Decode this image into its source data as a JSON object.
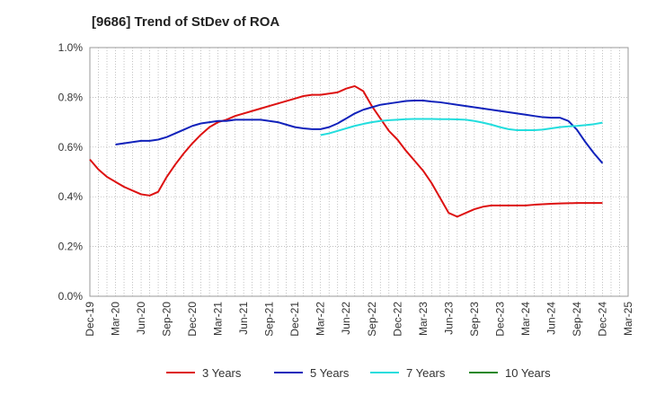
{
  "chart_data": {
    "type": "line",
    "title": "[9686]  Trend of StDev of ROA",
    "xlabel": "",
    "ylabel": "",
    "ylim": [
      0,
      1.0
    ],
    "y_ticks": [
      "0.0%",
      "0.2%",
      "0.4%",
      "0.6%",
      "0.8%",
      "1.0%"
    ],
    "y_tick_values": [
      0,
      0.2,
      0.4,
      0.6,
      0.8,
      1.0
    ],
    "x_ticks": [
      "Dec-19",
      "Mar-20",
      "Jun-20",
      "Sep-20",
      "Dec-20",
      "Mar-21",
      "Jun-21",
      "Sep-21",
      "Dec-21",
      "Mar-22",
      "Jun-22",
      "Sep-22",
      "Dec-22",
      "Mar-23",
      "Jun-23",
      "Sep-23",
      "Dec-23",
      "Mar-24",
      "Jun-24",
      "Sep-24",
      "Dec-24",
      "Mar-25"
    ],
    "grid": true,
    "legend_position": "bottom",
    "series": [
      {
        "name": "3 Years",
        "color": "#dd1111",
        "x": [
          "Dec-19",
          "Jan-20",
          "Feb-20",
          "Mar-20",
          "Apr-20",
          "May-20",
          "Jun-20",
          "Jul-20",
          "Aug-20",
          "Sep-20",
          "Oct-20",
          "Nov-20",
          "Dec-20",
          "Jan-21",
          "Feb-21",
          "Mar-21",
          "Apr-21",
          "May-21",
          "Jun-21",
          "Jul-21",
          "Aug-21",
          "Sep-21",
          "Oct-21",
          "Nov-21",
          "Dec-21",
          "Jan-22",
          "Feb-22",
          "Mar-22",
          "Apr-22",
          "May-22",
          "Jun-22",
          "Jul-22",
          "Aug-22",
          "Sep-22",
          "Oct-22",
          "Nov-22",
          "Dec-22",
          "Jan-23",
          "Feb-23",
          "Mar-23",
          "Apr-23",
          "May-23",
          "Jun-23",
          "Jul-23",
          "Aug-23",
          "Sep-23",
          "Oct-23",
          "Nov-23",
          "Dec-23",
          "Jan-24",
          "Feb-24",
          "Mar-24",
          "Apr-24",
          "May-24",
          "Jun-24",
          "Jul-24",
          "Aug-24",
          "Sep-24",
          "Oct-24",
          "Nov-24",
          "Dec-24"
        ],
        "values": [
          0.55,
          0.51,
          0.48,
          0.46,
          0.44,
          0.425,
          0.41,
          0.405,
          0.42,
          0.48,
          0.53,
          0.575,
          0.615,
          0.65,
          0.68,
          0.7,
          0.71,
          0.725,
          0.735,
          0.745,
          0.755,
          0.765,
          0.775,
          0.785,
          0.795,
          0.805,
          0.81,
          0.81,
          0.815,
          0.82,
          0.835,
          0.845,
          0.825,
          0.765,
          0.715,
          0.665,
          0.63,
          0.585,
          0.545,
          0.505,
          0.455,
          0.395,
          0.335,
          0.32,
          0.335,
          0.35,
          0.36,
          0.365,
          0.365,
          0.365,
          0.365,
          0.365,
          0.368,
          0.37,
          0.372,
          0.373,
          0.374,
          0.375,
          0.375,
          0.375,
          0.375
        ]
      },
      {
        "name": "5 Years",
        "color": "#1122bb",
        "x": [
          "Mar-20",
          "Apr-20",
          "May-20",
          "Jun-20",
          "Jul-20",
          "Aug-20",
          "Sep-20",
          "Oct-20",
          "Nov-20",
          "Dec-20",
          "Jan-21",
          "Feb-21",
          "Mar-21",
          "Apr-21",
          "May-21",
          "Jun-21",
          "Jul-21",
          "Aug-21",
          "Sep-21",
          "Oct-21",
          "Nov-21",
          "Dec-21",
          "Jan-22",
          "Feb-22",
          "Mar-22",
          "Apr-22",
          "May-22",
          "Jun-22",
          "Jul-22",
          "Aug-22",
          "Sep-22",
          "Oct-22",
          "Nov-22",
          "Dec-22",
          "Jan-23",
          "Feb-23",
          "Mar-23",
          "Apr-23",
          "May-23",
          "Jun-23",
          "Jul-23",
          "Aug-23",
          "Sep-23",
          "Oct-23",
          "Nov-23",
          "Dec-23",
          "Jan-24",
          "Feb-24",
          "Mar-24",
          "Apr-24",
          "May-24",
          "Jun-24",
          "Jul-24",
          "Aug-24",
          "Sep-24",
          "Oct-24",
          "Nov-24",
          "Dec-24"
        ],
        "values": [
          0.61,
          0.615,
          0.62,
          0.625,
          0.625,
          0.63,
          0.64,
          0.655,
          0.67,
          0.685,
          0.695,
          0.7,
          0.705,
          0.705,
          0.71,
          0.71,
          0.71,
          0.71,
          0.705,
          0.7,
          0.69,
          0.68,
          0.675,
          0.672,
          0.672,
          0.68,
          0.695,
          0.715,
          0.735,
          0.75,
          0.76,
          0.77,
          0.775,
          0.78,
          0.785,
          0.787,
          0.787,
          0.783,
          0.78,
          0.775,
          0.77,
          0.765,
          0.76,
          0.755,
          0.75,
          0.745,
          0.74,
          0.735,
          0.73,
          0.725,
          0.72,
          0.718,
          0.718,
          0.705,
          0.67,
          0.62,
          0.575,
          0.535
        ]
      },
      {
        "name": "7 Years",
        "color": "#22dddd",
        "x": [
          "Mar-22",
          "Apr-22",
          "May-22",
          "Jun-22",
          "Jul-22",
          "Aug-22",
          "Sep-22",
          "Oct-22",
          "Nov-22",
          "Dec-22",
          "Jan-23",
          "Feb-23",
          "Mar-23",
          "Apr-23",
          "May-23",
          "Jun-23",
          "Jul-23",
          "Aug-23",
          "Sep-23",
          "Oct-23",
          "Nov-23",
          "Dec-23",
          "Jan-24",
          "Feb-24",
          "Mar-24",
          "Apr-24",
          "May-24",
          "Jun-24",
          "Jul-24",
          "Aug-24",
          "Sep-24",
          "Oct-24",
          "Nov-24",
          "Dec-24"
        ],
        "values": [
          0.648,
          0.655,
          0.665,
          0.675,
          0.685,
          0.693,
          0.7,
          0.705,
          0.708,
          0.71,
          0.712,
          0.713,
          0.713,
          0.713,
          0.712,
          0.712,
          0.711,
          0.71,
          0.705,
          0.698,
          0.69,
          0.68,
          0.672,
          0.668,
          0.668,
          0.668,
          0.67,
          0.675,
          0.68,
          0.683,
          0.685,
          0.688,
          0.692,
          0.698
        ]
      },
      {
        "name": "10 Years",
        "color": "#228822",
        "x": [],
        "values": []
      }
    ]
  }
}
